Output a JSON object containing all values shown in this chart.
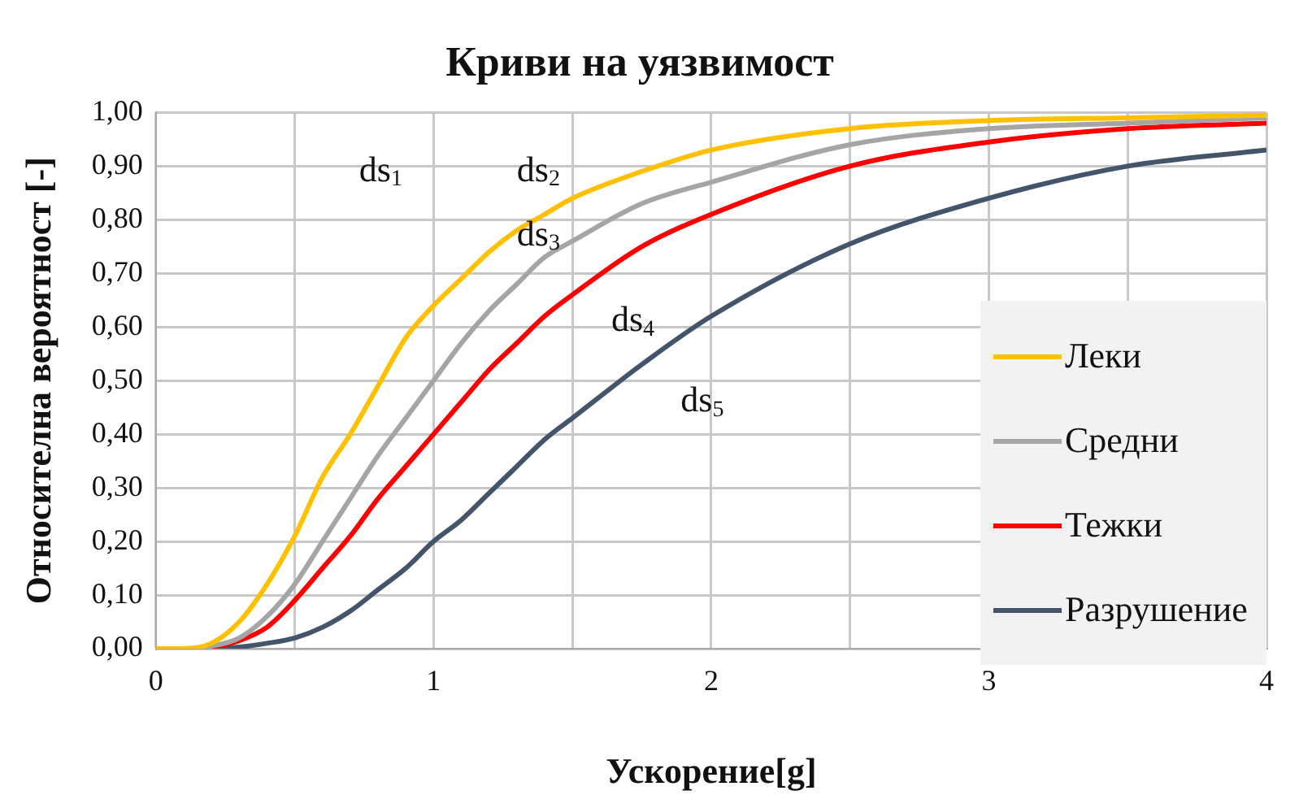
{
  "chart_data": {
    "type": "line",
    "title": "Криви на уязвимост",
    "xlabel": "Ускорение[g]",
    "ylabel": "Относителна вероятност [-]",
    "x": [
      0,
      0.1,
      0.2,
      0.3,
      0.4,
      0.5,
      0.6,
      0.7,
      0.8,
      0.9,
      1,
      1.1,
      1.2,
      1.3,
      1.4,
      1.5,
      1.75,
      2,
      2.5,
      3,
      3.5,
      4
    ],
    "series": [
      {
        "name": "Леки",
        "color": "#ffc000",
        "values": [
          0,
          0,
          0.01,
          0.05,
          0.12,
          0.21,
          0.32,
          0.4,
          0.49,
          0.58,
          0.64,
          0.69,
          0.74,
          0.78,
          0.81,
          0.84,
          0.89,
          0.93,
          0.97,
          0.985,
          0.99,
          0.995
        ]
      },
      {
        "name": "Средни",
        "color": "#a5a5a5",
        "values": [
          0,
          0,
          0.005,
          0.02,
          0.06,
          0.12,
          0.2,
          0.28,
          0.36,
          0.43,
          0.5,
          0.57,
          0.63,
          0.68,
          0.73,
          0.76,
          0.83,
          0.87,
          0.94,
          0.97,
          0.98,
          0.99
        ]
      },
      {
        "name": "Тежки",
        "color": "#ff0000",
        "values": [
          0,
          0,
          0.003,
          0.015,
          0.04,
          0.09,
          0.15,
          0.21,
          0.28,
          0.34,
          0.4,
          0.46,
          0.52,
          0.57,
          0.62,
          0.66,
          0.75,
          0.81,
          0.9,
          0.945,
          0.97,
          0.98
        ]
      },
      {
        "name": "Разрушение",
        "color": "#44546a",
        "values": [
          0,
          0,
          0,
          0.003,
          0.01,
          0.02,
          0.04,
          0.07,
          0.11,
          0.15,
          0.2,
          0.24,
          0.29,
          0.34,
          0.39,
          0.43,
          0.53,
          0.62,
          0.755,
          0.84,
          0.9,
          0.93
        ]
      }
    ],
    "xlim": [
      0,
      4
    ],
    "xticks": [
      0,
      {
        "value": 0.5,
        "label": null
      },
      1,
      {
        "value": 1.5,
        "label": null
      },
      2,
      {
        "value": 2.5,
        "label": null
      },
      3,
      {
        "value": 3.5,
        "label": null
      },
      4
    ],
    "ylim": [
      0,
      1
    ],
    "yticks": [
      {
        "value": 0,
        "label": "0,00"
      },
      {
        "value": 0.1,
        "label": "0,10"
      },
      {
        "value": 0.2,
        "label": "0,20"
      },
      {
        "value": 0.3,
        "label": "0,30"
      },
      {
        "value": 0.4,
        "label": "0,40"
      },
      {
        "value": 0.5,
        "label": "0,50"
      },
      {
        "value": 0.6,
        "label": "0,60"
      },
      {
        "value": 0.7,
        "label": "0,70"
      },
      {
        "value": 0.8,
        "label": "0,80"
      },
      {
        "value": 0.9,
        "label": "0,90"
      },
      {
        "value": 1,
        "label": "1,00"
      }
    ],
    "annotations": [
      "ds$_{1}$",
      "ds$_{2}$",
      "ds$_{3}$",
      "ds$_{4}$",
      "ds$_{5}$"
    ],
    "grid": true,
    "legend": "bottom right",
    "marker": "none",
    "line_style": "solid"
  }
}
